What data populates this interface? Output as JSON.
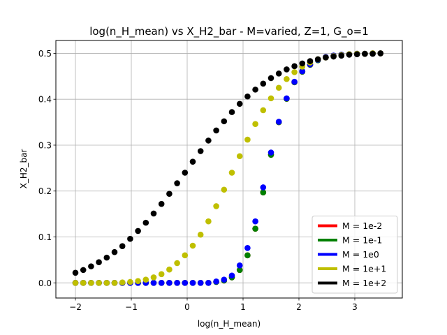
{
  "chart_data": {
    "type": "scatter",
    "title": "log(n_H_mean) vs X_H2_bar - M=varied, Z=1, G_o=1",
    "xlabel": "log(n_H_mean)",
    "ylabel": "X_H2_bar",
    "xlim": [
      -2.35,
      3.85
    ],
    "ylim": [
      -0.033,
      0.528
    ],
    "xticks": [
      -2,
      -1,
      0,
      1,
      2,
      3
    ],
    "xtick_labels": [
      "−2",
      "−1",
      "0",
      "1",
      "2",
      "3"
    ],
    "yticks": [
      0.0,
      0.1,
      0.2,
      0.3,
      0.4,
      0.5
    ],
    "ytick_labels": [
      "0.0",
      "0.1",
      "0.2",
      "0.3",
      "0.4",
      "0.5"
    ],
    "grid": true,
    "legend_position": "lower-right",
    "x": [
      -2.0,
      -1.86,
      -1.72,
      -1.58,
      -1.44,
      -1.3,
      -1.16,
      -1.02,
      -0.88,
      -0.74,
      -0.6,
      -0.46,
      -0.32,
      -0.18,
      -0.04,
      0.1,
      0.24,
      0.38,
      0.52,
      0.66,
      0.8,
      0.94,
      1.08,
      1.22,
      1.36,
      1.5,
      1.64,
      1.78,
      1.92,
      2.06,
      2.2,
      2.34,
      2.48,
      2.62,
      2.76,
      2.9,
      3.04,
      3.18,
      3.32,
      3.46
    ],
    "series": [
      {
        "name": "M = 1e-2",
        "color": "#ff0000",
        "values": [
          0.0,
          0.0,
          0.0,
          0.0,
          0.0,
          0.0,
          0.0,
          0.0,
          0.0,
          0.0,
          0.0,
          0.0,
          0.0,
          0.0,
          0.0,
          0.0,
          0.0,
          0.0,
          0.002,
          0.005,
          0.012,
          0.028,
          0.06,
          0.118,
          0.197,
          0.279,
          0.35,
          0.401,
          0.437,
          0.46,
          0.475,
          0.485,
          0.491,
          0.495,
          0.497,
          0.498,
          0.499,
          0.499,
          0.5,
          0.5
        ]
      },
      {
        "name": "M = 1e-1",
        "color": "#008000",
        "values": [
          0.0,
          0.0,
          0.0,
          0.0,
          0.0,
          0.0,
          0.0,
          0.0,
          0.0,
          0.0,
          0.0,
          0.0,
          0.0,
          0.0,
          0.0,
          0.0,
          0.0,
          0.0,
          0.002,
          0.005,
          0.012,
          0.028,
          0.06,
          0.118,
          0.197,
          0.279,
          0.35,
          0.401,
          0.437,
          0.46,
          0.475,
          0.485,
          0.491,
          0.495,
          0.497,
          0.498,
          0.499,
          0.499,
          0.5,
          0.5
        ]
      },
      {
        "name": "M = 1e0",
        "color": "#0000ff",
        "values": [
          0.0,
          0.0,
          0.0,
          0.0,
          0.0,
          0.0,
          0.0,
          0.0,
          0.0,
          0.0,
          0.0,
          0.0,
          0.0,
          0.0,
          0.0,
          0.0,
          0.0,
          0.0,
          0.003,
          0.007,
          0.016,
          0.038,
          0.076,
          0.134,
          0.208,
          0.284,
          0.351,
          0.402,
          0.438,
          0.461,
          0.476,
          0.486,
          0.492,
          0.495,
          0.497,
          0.498,
          0.499,
          0.499,
          0.5,
          0.5
        ]
      },
      {
        "name": "M = 1e+1",
        "color": "#bfbf00",
        "values": [
          0.0,
          0.0,
          0.0,
          0.0,
          0.0,
          0.0,
          0.001,
          0.002,
          0.004,
          0.007,
          0.012,
          0.019,
          0.029,
          0.043,
          0.06,
          0.081,
          0.105,
          0.134,
          0.167,
          0.203,
          0.24,
          0.276,
          0.312,
          0.346,
          0.376,
          0.402,
          0.425,
          0.444,
          0.459,
          0.471,
          0.48,
          0.487,
          0.491,
          0.494,
          0.496,
          0.498,
          0.499,
          0.499,
          0.5,
          0.5
        ]
      },
      {
        "name": "M = 1e+2",
        "color": "#000000",
        "values": [
          0.022,
          0.028,
          0.036,
          0.045,
          0.055,
          0.067,
          0.08,
          0.096,
          0.113,
          0.131,
          0.151,
          0.172,
          0.194,
          0.217,
          0.24,
          0.264,
          0.287,
          0.31,
          0.332,
          0.352,
          0.372,
          0.39,
          0.406,
          0.421,
          0.434,
          0.446,
          0.456,
          0.465,
          0.472,
          0.478,
          0.483,
          0.487,
          0.491,
          0.493,
          0.495,
          0.497,
          0.498,
          0.499,
          0.499,
          0.5
        ]
      }
    ]
  }
}
